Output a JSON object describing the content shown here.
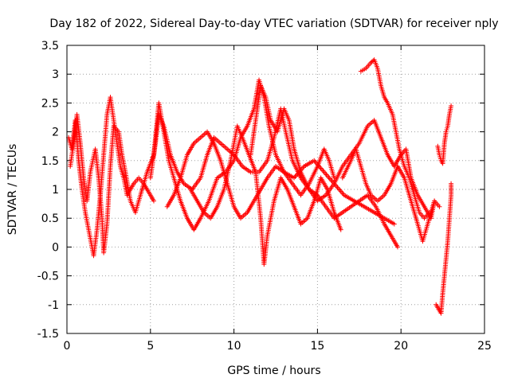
{
  "chart_data": {
    "type": "scatter",
    "title": "Day 182 of 2022, Sidereal Day-to-day VTEC variation (SDTVAR) for receiver nply",
    "xlabel": "GPS time / hours",
    "ylabel": "SDTVAR / TECUs",
    "xlim": [
      0,
      25
    ],
    "ylim": [
      -1.5,
      3.5
    ],
    "xticks": [
      0,
      5,
      10,
      15,
      20,
      25
    ],
    "yticks": [
      -1.5,
      -1,
      -0.5,
      0,
      0.5,
      1,
      1.5,
      2,
      2.5,
      3,
      3.5
    ],
    "xtick_labels": [
      "0",
      "5",
      "10",
      "15",
      "20",
      "25"
    ],
    "ytick_labels": [
      "-1.5",
      "-1",
      "-0.5",
      "0",
      "0.5",
      "1",
      "1.5",
      "2",
      "2.5",
      "3",
      "3.5"
    ],
    "grid": true,
    "marker": "+",
    "color": "#ff0000",
    "series": [
      {
        "name": "track-1",
        "points": [
          [
            0.1,
            1.9
          ],
          [
            0.3,
            1.7
          ],
          [
            0.5,
            2.2
          ],
          [
            0.7,
            1.5
          ],
          [
            0.9,
            1.0
          ],
          [
            1.1,
            0.6
          ],
          [
            1.3,
            0.3
          ],
          [
            1.5,
            0.0
          ],
          [
            1.6,
            -0.15
          ],
          [
            1.8,
            0.3
          ],
          [
            2.0,
            0.9
          ],
          [
            2.2,
            1.6
          ],
          [
            2.4,
            2.3
          ],
          [
            2.6,
            2.6
          ],
          [
            2.8,
            2.2
          ],
          [
            3.0,
            1.8
          ],
          [
            3.2,
            1.4
          ],
          [
            3.4,
            1.2
          ],
          [
            3.6,
            0.9
          ],
          [
            3.8,
            1.0
          ],
          [
            4.0,
            1.1
          ],
          [
            4.3,
            1.2
          ],
          [
            4.6,
            1.1
          ],
          [
            5.0,
            0.9
          ],
          [
            5.2,
            0.8
          ]
        ]
      },
      {
        "name": "track-2",
        "points": [
          [
            0.2,
            1.4
          ],
          [
            0.4,
            1.8
          ],
          [
            0.6,
            2.3
          ],
          [
            0.8,
            1.8
          ],
          [
            1.0,
            1.2
          ],
          [
            1.2,
            0.8
          ],
          [
            1.4,
            1.3
          ],
          [
            1.7,
            1.7
          ],
          [
            1.9,
            1.2
          ],
          [
            2.1,
            0.5
          ],
          [
            2.2,
            -0.1
          ],
          [
            2.4,
            0.4
          ],
          [
            2.6,
            1.4
          ],
          [
            2.8,
            2.1
          ],
          [
            3.1,
            2.0
          ],
          [
            3.3,
            1.6
          ],
          [
            3.5,
            1.3
          ],
          [
            3.8,
            0.8
          ],
          [
            4.1,
            0.6
          ],
          [
            4.4,
            0.9
          ],
          [
            4.8,
            1.3
          ],
          [
            5.2,
            1.6
          ],
          [
            5.5,
            2.5
          ],
          [
            5.8,
            2.0
          ],
          [
            6.1,
            1.5
          ],
          [
            6.4,
            1.2
          ],
          [
            6.8,
            0.8
          ],
          [
            7.2,
            0.5
          ],
          [
            7.6,
            0.3
          ],
          [
            8.0,
            0.5
          ],
          [
            8.5,
            0.8
          ],
          [
            9.0,
            1.2
          ],
          [
            9.5,
            1.3
          ],
          [
            10.0,
            1.5
          ],
          [
            10.4,
            1.9
          ],
          [
            10.8,
            2.1
          ],
          [
            11.2,
            2.4
          ],
          [
            11.5,
            2.9
          ],
          [
            11.8,
            2.6
          ],
          [
            12.1,
            2.1
          ],
          [
            12.5,
            1.6
          ],
          [
            13.0,
            1.3
          ],
          [
            13.5,
            1.1
          ],
          [
            14.0,
            0.9
          ],
          [
            14.5,
            1.1
          ],
          [
            15.0,
            1.4
          ],
          [
            15.4,
            1.7
          ],
          [
            15.7,
            1.5
          ],
          [
            16.0,
            1.2
          ]
        ]
      },
      {
        "name": "track-3",
        "points": [
          [
            5.0,
            1.2
          ],
          [
            5.3,
            1.8
          ],
          [
            5.5,
            2.3
          ],
          [
            5.8,
            2.1
          ],
          [
            6.2,
            1.6
          ],
          [
            6.6,
            1.3
          ],
          [
            7.0,
            1.1
          ],
          [
            7.5,
            1.0
          ],
          [
            8.0,
            1.2
          ],
          [
            8.4,
            1.6
          ],
          [
            8.8,
            1.9
          ],
          [
            9.2,
            1.8
          ],
          [
            9.6,
            1.7
          ],
          [
            10.0,
            1.6
          ],
          [
            10.5,
            1.4
          ],
          [
            11.0,
            1.3
          ],
          [
            11.5,
            1.3
          ],
          [
            12.0,
            1.5
          ],
          [
            12.4,
            1.9
          ],
          [
            12.8,
            2.4
          ],
          [
            13.1,
            2.0
          ],
          [
            13.5,
            1.5
          ],
          [
            14.0,
            1.2
          ],
          [
            14.5,
            1.0
          ],
          [
            15.0,
            0.9
          ],
          [
            15.5,
            0.7
          ],
          [
            16.0,
            0.5
          ],
          [
            16.5,
            0.6
          ],
          [
            17.0,
            0.7
          ],
          [
            17.5,
            0.8
          ],
          [
            18.0,
            0.9
          ],
          [
            18.5,
            0.7
          ],
          [
            19.0,
            0.4
          ],
          [
            19.5,
            0.15
          ],
          [
            19.8,
            0.0
          ]
        ]
      },
      {
        "name": "track-4",
        "points": [
          [
            6.0,
            0.7
          ],
          [
            6.4,
            0.9
          ],
          [
            6.8,
            1.2
          ],
          [
            7.2,
            1.6
          ],
          [
            7.6,
            1.8
          ],
          [
            8.0,
            1.9
          ],
          [
            8.4,
            2.0
          ],
          [
            8.8,
            1.8
          ],
          [
            9.2,
            1.5
          ],
          [
            9.6,
            1.1
          ],
          [
            10.0,
            0.7
          ],
          [
            10.4,
            0.5
          ],
          [
            10.8,
            0.6
          ],
          [
            11.2,
            0.8
          ],
          [
            11.6,
            1.0
          ],
          [
            12.0,
            1.2
          ],
          [
            12.5,
            1.4
          ],
          [
            13.0,
            1.3
          ],
          [
            13.6,
            1.2
          ],
          [
            14.2,
            1.4
          ],
          [
            14.8,
            1.5
          ],
          [
            15.4,
            1.3
          ],
          [
            16.0,
            1.1
          ],
          [
            16.6,
            0.9
          ],
          [
            17.2,
            0.8
          ],
          [
            17.8,
            0.7
          ],
          [
            18.4,
            0.6
          ],
          [
            19.0,
            0.5
          ],
          [
            19.6,
            0.4
          ]
        ]
      },
      {
        "name": "track-5",
        "points": [
          [
            7.4,
            1.0
          ],
          [
            7.8,
            0.8
          ],
          [
            8.2,
            0.6
          ],
          [
            8.6,
            0.5
          ],
          [
            9.0,
            0.7
          ],
          [
            9.4,
            1.0
          ],
          [
            9.8,
            1.5
          ],
          [
            10.2,
            2.1
          ],
          [
            10.5,
            1.9
          ],
          [
            10.9,
            1.6
          ],
          [
            11.3,
            1.3
          ],
          [
            11.6,
            0.5
          ],
          [
            11.8,
            -0.3
          ],
          [
            12.0,
            0.2
          ],
          [
            12.4,
            0.8
          ],
          [
            12.8,
            1.2
          ],
          [
            13.2,
            1.0
          ],
          [
            13.6,
            0.7
          ],
          [
            14.0,
            0.4
          ],
          [
            14.4,
            0.5
          ],
          [
            14.8,
            0.8
          ],
          [
            15.2,
            1.2
          ],
          [
            15.6,
            1.0
          ],
          [
            16.0,
            0.6
          ],
          [
            16.4,
            0.3
          ]
        ]
      },
      {
        "name": "track-6",
        "points": [
          [
            11.0,
            1.6
          ],
          [
            11.3,
            2.2
          ],
          [
            11.6,
            2.8
          ],
          [
            11.9,
            2.6
          ],
          [
            12.2,
            2.2
          ],
          [
            12.6,
            2.0
          ],
          [
            13.0,
            2.4
          ],
          [
            13.3,
            2.2
          ],
          [
            13.6,
            1.7
          ],
          [
            14.0,
            1.3
          ],
          [
            14.5,
            1.0
          ],
          [
            15.0,
            0.8
          ],
          [
            15.5,
            0.9
          ],
          [
            16.0,
            1.1
          ],
          [
            16.5,
            1.4
          ],
          [
            17.0,
            1.6
          ],
          [
            17.5,
            1.8
          ],
          [
            18.0,
            2.1
          ],
          [
            18.4,
            2.2
          ],
          [
            18.8,
            1.9
          ],
          [
            19.2,
            1.6
          ],
          [
            19.6,
            1.4
          ],
          [
            20.0,
            1.6
          ],
          [
            20.3,
            1.7
          ],
          [
            20.6,
            1.2
          ],
          [
            21.0,
            0.9
          ],
          [
            21.4,
            0.7
          ],
          [
            21.8,
            0.5
          ],
          [
            22.0,
            0.8
          ]
        ]
      },
      {
        "name": "track-7",
        "points": [
          [
            16.5,
            1.2
          ],
          [
            17.0,
            1.5
          ],
          [
            17.3,
            1.7
          ],
          [
            17.6,
            1.4
          ],
          [
            17.9,
            1.1
          ],
          [
            18.2,
            0.9
          ],
          [
            18.6,
            0.8
          ],
          [
            19.0,
            0.9
          ],
          [
            19.4,
            1.1
          ],
          [
            19.8,
            1.4
          ],
          [
            20.2,
            1.2
          ],
          [
            20.6,
            0.8
          ],
          [
            21.0,
            0.4
          ],
          [
            21.3,
            0.1
          ],
          [
            21.6,
            0.4
          ],
          [
            22.0,
            0.8
          ],
          [
            22.3,
            0.7
          ]
        ]
      },
      {
        "name": "track-8",
        "points": [
          [
            17.6,
            3.05
          ],
          [
            17.9,
            3.1
          ],
          [
            18.2,
            3.2
          ],
          [
            18.4,
            3.25
          ],
          [
            18.6,
            3.1
          ],
          [
            18.8,
            2.8
          ],
          [
            19.0,
            2.6
          ],
          [
            19.2,
            2.5
          ],
          [
            19.5,
            2.3
          ],
          [
            19.7,
            2.0
          ],
          [
            19.9,
            1.7
          ],
          [
            20.2,
            1.4
          ],
          [
            20.5,
            1.2
          ],
          [
            20.8,
            0.9
          ],
          [
            21.1,
            0.6
          ],
          [
            21.4,
            0.5
          ],
          [
            21.7,
            0.6
          ]
        ]
      },
      {
        "name": "track-9",
        "points": [
          [
            22.1,
            -1.0
          ],
          [
            22.3,
            -1.1
          ],
          [
            22.4,
            -1.15
          ],
          [
            22.5,
            -0.8
          ],
          [
            22.6,
            -0.5
          ],
          [
            22.7,
            -0.2
          ],
          [
            22.8,
            0.1
          ],
          [
            22.9,
            0.5
          ],
          [
            23.0,
            0.9
          ],
          [
            23.0,
            1.1
          ]
        ]
      },
      {
        "name": "track-10",
        "points": [
          [
            22.2,
            1.75
          ],
          [
            22.3,
            1.6
          ],
          [
            22.4,
            1.5
          ],
          [
            22.5,
            1.45
          ],
          [
            22.6,
            1.8
          ],
          [
            22.7,
            2.0
          ],
          [
            22.8,
            2.1
          ],
          [
            22.9,
            2.3
          ],
          [
            23.0,
            2.45
          ]
        ]
      }
    ]
  }
}
